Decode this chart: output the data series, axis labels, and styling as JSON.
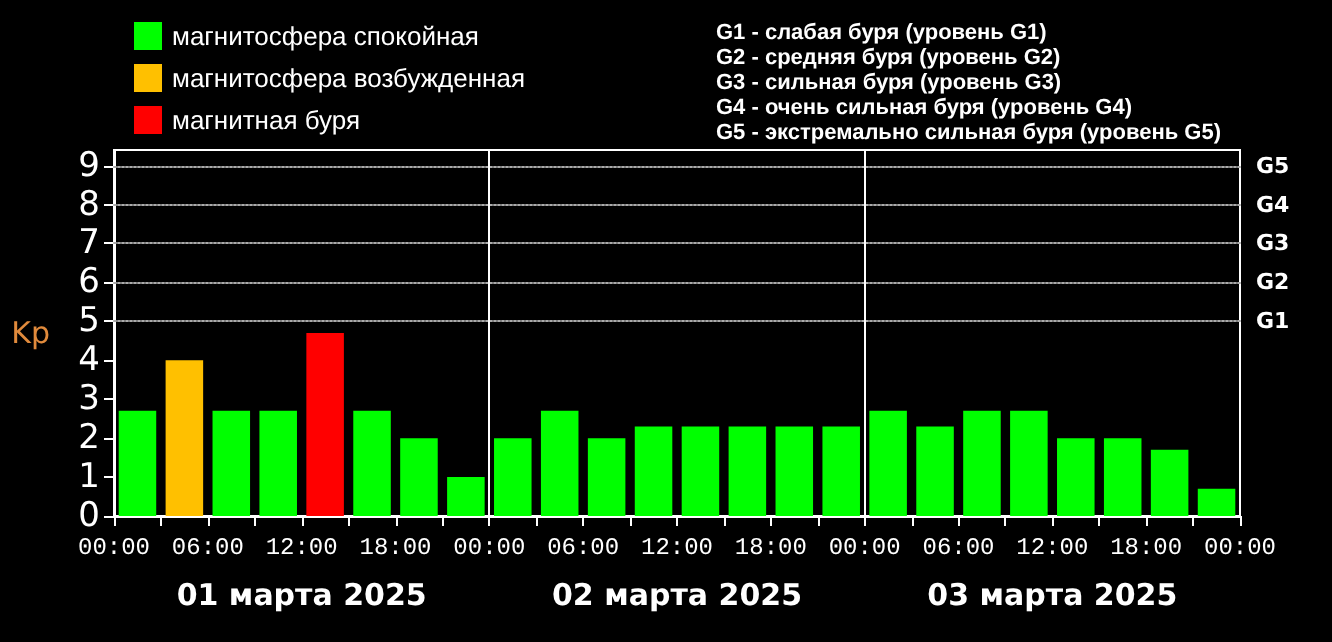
{
  "chart_data": {
    "type": "bar",
    "ylabel": "Kp",
    "x": [
      "2025-03-01T01:30",
      "2025-03-01T04:30",
      "2025-03-01T07:30",
      "2025-03-01T10:30",
      "2025-03-01T13:30",
      "2025-03-01T16:30",
      "2025-03-01T19:30",
      "2025-03-01T22:30",
      "2025-03-02T01:30",
      "2025-03-02T04:30",
      "2025-03-02T07:30",
      "2025-03-02T10:30",
      "2025-03-02T13:30",
      "2025-03-02T16:30",
      "2025-03-02T19:30",
      "2025-03-02T22:30",
      "2025-03-03T01:30",
      "2025-03-03T04:30",
      "2025-03-03T07:30",
      "2025-03-03T10:30",
      "2025-03-03T13:30",
      "2025-03-03T16:30",
      "2025-03-03T19:30",
      "2025-03-03T22:30"
    ],
    "series": [
      {
        "name": "магнитосфера спокойная",
        "color": "#00ff00",
        "values": [
          2.7,
          null,
          2.7,
          2.7,
          null,
          2.7,
          2,
          1,
          2,
          2.7,
          2,
          2.3,
          2.3,
          2.3,
          2.3,
          2.3,
          2.7,
          2.3,
          2.7,
          2.7,
          2,
          2,
          1.7,
          0.7
        ]
      },
      {
        "name": "магнитосфера возбужденная",
        "color": "#ffc000",
        "values": [
          null,
          4,
          null,
          null,
          null,
          null,
          null,
          null,
          null,
          null,
          null,
          null,
          null,
          null,
          null,
          null,
          null,
          null,
          null,
          null,
          null,
          null,
          null,
          null
        ]
      },
      {
        "name": "магнитная буря",
        "color": "#ff0000",
        "values": [
          null,
          null,
          null,
          null,
          4.7,
          null,
          null,
          null,
          null,
          null,
          null,
          null,
          null,
          null,
          null,
          null,
          null,
          null,
          null,
          null,
          null,
          null,
          null,
          null
        ]
      }
    ],
    "xlim": [
      "2025-03-01T00:00",
      "2025-03-04T00:00"
    ],
    "xticks": [
      {
        "value": "2025-03-01T00:00",
        "label": "00:00"
      },
      {
        "value": "2025-03-01T03:00",
        "label": null
      },
      {
        "value": "2025-03-01T06:00",
        "label": "06:00"
      },
      {
        "value": "2025-03-01T09:00",
        "label": null
      },
      {
        "value": "2025-03-01T12:00",
        "label": "12:00"
      },
      {
        "value": "2025-03-01T15:00",
        "label": null
      },
      {
        "value": "2025-03-01T18:00",
        "label": "18:00"
      },
      {
        "value": "2025-03-01T21:00",
        "label": null
      },
      {
        "value": "2025-03-02T00:00",
        "label": "00:00"
      },
      {
        "value": "2025-03-02T03:00",
        "label": null
      },
      {
        "value": "2025-03-02T06:00",
        "label": "06:00"
      },
      {
        "value": "2025-03-02T09:00",
        "label": null
      },
      {
        "value": "2025-03-02T12:00",
        "label": "12:00"
      },
      {
        "value": "2025-03-02T15:00",
        "label": null
      },
      {
        "value": "2025-03-02T18:00",
        "label": "18:00"
      },
      {
        "value": "2025-03-02T21:00",
        "label": null
      },
      {
        "value": "2025-03-03T00:00",
        "label": "00:00"
      },
      {
        "value": "2025-03-03T03:00",
        "label": null
      },
      {
        "value": "2025-03-03T06:00",
        "label": "06:00"
      },
      {
        "value": "2025-03-03T09:00",
        "label": null
      },
      {
        "value": "2025-03-03T12:00",
        "label": "12:00"
      },
      {
        "value": "2025-03-03T15:00",
        "label": null
      },
      {
        "value": "2025-03-03T18:00",
        "label": "18:00"
      },
      {
        "value": "2025-03-03T21:00",
        "label": null
      },
      {
        "value": "2025-03-04T00:00",
        "label": "00:00"
      }
    ],
    "ylim": [
      0,
      9.4
    ],
    "yticks": [
      0,
      1,
      2,
      3,
      4,
      5,
      6,
      7,
      8,
      9
    ],
    "ref_lines": [
      {
        "axis": "y",
        "value": 5,
        "label": "G1",
        "color": "#aaaaaa",
        "line_style": "dotted"
      },
      {
        "axis": "y",
        "value": 6,
        "label": "G2",
        "color": "#aaaaaa",
        "line_style": "dotted"
      },
      {
        "axis": "y",
        "value": 7,
        "label": "G3",
        "color": "#aaaaaa",
        "line_style": "dotted"
      },
      {
        "axis": "y",
        "value": 8,
        "label": "G4",
        "color": "#aaaaaa",
        "line_style": "dotted"
      },
      {
        "axis": "y",
        "value": 9,
        "label": "G5",
        "color": "#aaaaaa",
        "line_style": "dotted"
      },
      {
        "axis": "x",
        "value": "2025-03-02T00:00",
        "color": "#ffffff",
        "line_style": "solid"
      },
      {
        "axis": "x",
        "value": "2025-03-03T00:00",
        "color": "#ffffff",
        "line_style": "solid"
      }
    ],
    "annotations": [
      "01 марта 2025",
      "02 марта 2025",
      "03 марта 2025",
      "G1 - слабая буря (уровень G1)",
      "G2 - средняя буря (уровень G2)",
      "G3 - сильная буря (уровень G3)",
      "G4 - очень сильная буря (уровень G4)",
      "G5 - экстремально сильная буря (уровень G5)"
    ],
    "legend": "top left",
    "grid": false
  }
}
